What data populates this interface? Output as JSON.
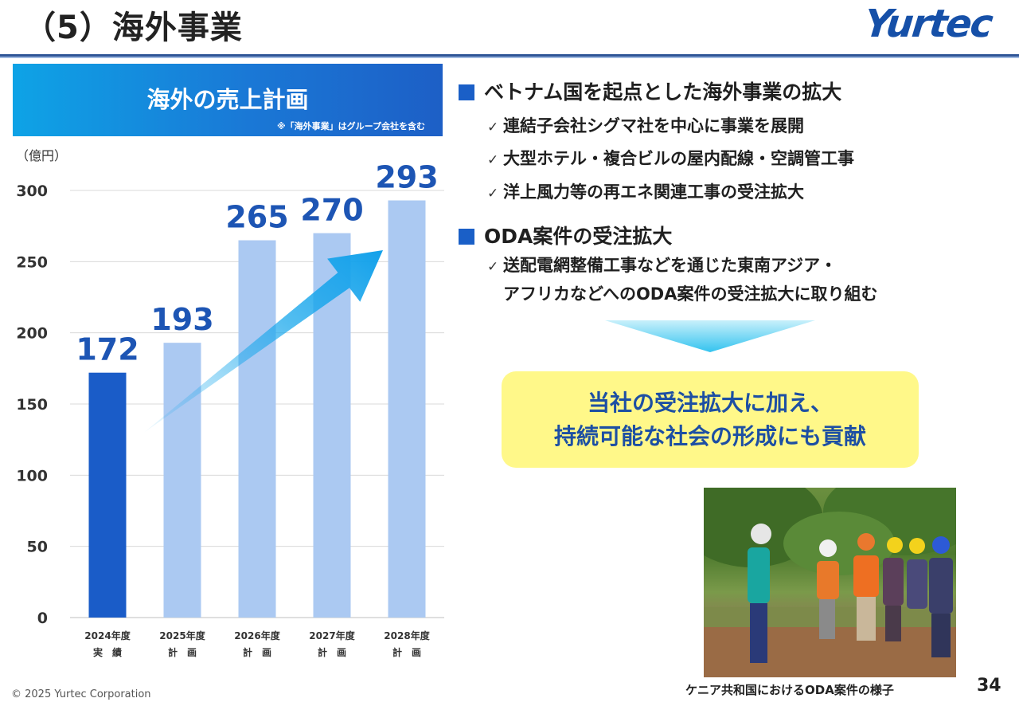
{
  "header": {
    "title": "（5）海外事業",
    "logo_text": "Yurtec"
  },
  "chart_banner": {
    "title": "海外の売上計画",
    "note": "※「海外事業」はグループ会社を含む"
  },
  "chart_data": {
    "type": "bar",
    "title": "海外の売上計画",
    "ylabel": "（億円）",
    "xlabel": "",
    "ylim": [
      0,
      300
    ],
    "yticks": [
      0,
      50,
      100,
      150,
      200,
      250,
      300
    ],
    "grid": true,
    "categories": [
      "2024年度",
      "2025年度",
      "2026年度",
      "2027年度",
      "2028年度"
    ],
    "category_sublabels": [
      "実　績",
      "計　画",
      "計　画",
      "計　画",
      "計　画"
    ],
    "values": [
      172,
      193,
      265,
      270,
      293
    ],
    "data_labels": [
      "172",
      "193",
      "265",
      "270",
      "293"
    ],
    "colors": {
      "actual": "#1a5cc8",
      "plan": "#abc9f2",
      "label": "#1d55b4",
      "trend_arrow": "#1aa8ec"
    },
    "annotations": [
      "upward trend arrow from 2025年度 to 2028年度"
    ]
  },
  "sections": [
    {
      "heading": "ベトナム国を起点とした海外事業の拡大",
      "bullets": [
        "連結子会社シグマ社を中心に事業を展開",
        "大型ホテル・複合ビルの屋内配線・空調管工事",
        "洋上風力等の再エネ関連工事の受注拡大"
      ]
    },
    {
      "heading": "ODA案件の受注拡大",
      "bullets": [
        "送配電網整備工事などを通じた東南アジア・",
        "アフリカなどへのODA案件の受注拡大に取り組む"
      ]
    }
  ],
  "check_mark": "✓",
  "callout": {
    "line1": "当社の受注拡大に加え、",
    "line2": "持続可能な社会の形成にも貢献"
  },
  "photo": {
    "caption": "ケニア共和国におけるODA案件の様子"
  },
  "footer": {
    "copyright": "© 2025 Yurtec Corporation",
    "page_number": "34"
  },
  "colors": {
    "accent_blue": "#1a5fc7",
    "callout_bg": "#fff889",
    "callout_text": "#1d4fa3"
  }
}
